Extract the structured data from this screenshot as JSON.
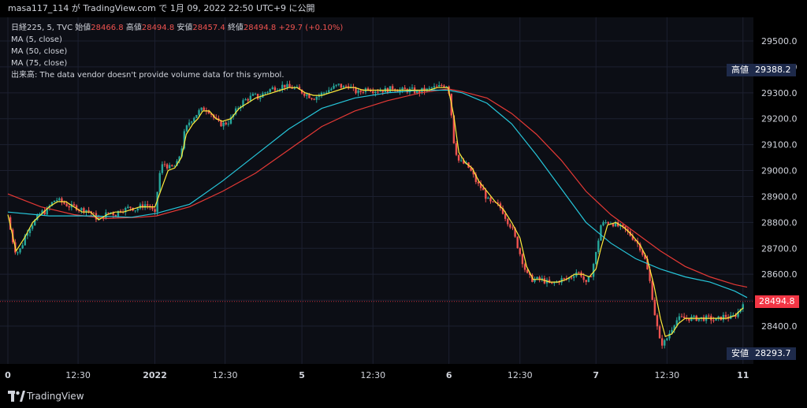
{
  "header": {
    "publisher": "masa117_114 が TradingView.com で 1月 09, 2022 22:50 UTC+9 に公開"
  },
  "legend": {
    "symbol": "日経225, 5, TVC",
    "open_label": "始値",
    "open_value": "28466.8",
    "high_label": "高値",
    "high_value": "28494.8",
    "low_label": "安値",
    "low_value": "28457.4",
    "close_label": "終値",
    "close_value": "28494.8",
    "change_value": "+29.7 (+0.10%)",
    "ma5": "MA (5, close)",
    "ma50": "MA (50, close)",
    "ma75": "MA (75, close)",
    "volume_note": "出来高: The data vendor doesn't provide volume data for this symbol."
  },
  "tags": {
    "high_label": "高値",
    "high_value": "29388.2",
    "low_label": "安値",
    "low_value": "28293.7",
    "last_value": "28494.8"
  },
  "footer": {
    "brand": "TradingView"
  },
  "colors": {
    "up": "#26a69a",
    "down": "#ef5350",
    "ma5": "#ffeb3b",
    "ma50": "#26c6da",
    "ma75": "#e53935",
    "last": "#f23645"
  },
  "chart_data": {
    "type": "candlestick",
    "title": "日経225, 5, TVC",
    "y_ticks": [
      28400,
      28500,
      28600,
      28700,
      28800,
      28900,
      29000,
      29100,
      29200,
      29300,
      29400,
      29500
    ],
    "y_tick_labels": [
      "28400.0",
      "28500.0",
      "28600.0",
      "28700.0",
      "28800.0",
      "28900.0",
      "29000.0",
      "29100.0",
      "29200.0",
      "29300.0",
      "29400.0",
      "29500.0"
    ],
    "ylim": [
      28250,
      29580
    ],
    "x_ticks": [
      "0",
      "12:30",
      "2022",
      "12:30",
      "5",
      "12:30",
      "6",
      "12:30",
      "7",
      "12:30",
      "11"
    ],
    "x_tick_pos": [
      0,
      8.5,
      17.8,
      26.3,
      35.6,
      44.2,
      53.4,
      62,
      71.2,
      79.8,
      89
    ],
    "x_range": [
      0,
      89.5
    ],
    "close_path": [
      [
        0,
        28820
      ],
      [
        0.5,
        28740
      ],
      [
        1,
        28680
      ],
      [
        1.6,
        28700
      ],
      [
        2.2,
        28760
      ],
      [
        2.8,
        28790
      ],
      [
        3.4,
        28810
      ],
      [
        4,
        28840
      ],
      [
        4.6,
        28840
      ],
      [
        5.2,
        28870
      ],
      [
        5.8,
        28890
      ],
      [
        6.4,
        28880
      ],
      [
        7,
        28870
      ],
      [
        7.6,
        28860
      ],
      [
        8.2,
        28860
      ],
      [
        8.8,
        28850
      ],
      [
        9.4,
        28850
      ],
      [
        10,
        28840
      ],
      [
        10.6,
        28820
      ],
      [
        11.2,
        28810
      ],
      [
        11.8,
        28830
      ],
      [
        12.4,
        28840
      ],
      [
        13,
        28830
      ],
      [
        13.6,
        28850
      ],
      [
        14.2,
        28850
      ],
      [
        14.8,
        28860
      ],
      [
        15.4,
        28850
      ],
      [
        16,
        28860
      ],
      [
        16.6,
        28870
      ],
      [
        17.2,
        28860
      ],
      [
        17.8,
        28830
      ],
      [
        18.3,
        28980
      ],
      [
        18.8,
        29030
      ],
      [
        19.6,
        29010
      ],
      [
        20.4,
        29020
      ],
      [
        21,
        29080
      ],
      [
        21.4,
        29150
      ],
      [
        22,
        29190
      ],
      [
        22.6,
        29210
      ],
      [
        23.2,
        29230
      ],
      [
        23.8,
        29240
      ],
      [
        24.4,
        29230
      ],
      [
        25,
        29200
      ],
      [
        25.6,
        29180
      ],
      [
        26.2,
        29180
      ],
      [
        26.8,
        29190
      ],
      [
        27.4,
        29220
      ],
      [
        28,
        29250
      ],
      [
        28.6,
        29270
      ],
      [
        29.2,
        29280
      ],
      [
        29.8,
        29290
      ],
      [
        30.4,
        29280
      ],
      [
        31,
        29300
      ],
      [
        31.6,
        29310
      ],
      [
        32.2,
        29320
      ],
      [
        32.8,
        29320
      ],
      [
        33.4,
        29330
      ],
      [
        34,
        29320
      ],
      [
        34.6,
        29320
      ],
      [
        35.2,
        29310
      ],
      [
        35.8,
        29300
      ],
      [
        36.4,
        29290
      ],
      [
        37,
        29280
      ],
      [
        37.6,
        29290
      ],
      [
        38.2,
        29300
      ],
      [
        38.8,
        29310
      ],
      [
        39.4,
        29320
      ],
      [
        40,
        29330
      ],
      [
        40.6,
        29320
      ],
      [
        41.2,
        29330
      ],
      [
        41.8,
        29310
      ],
      [
        42.4,
        29300
      ],
      [
        43,
        29310
      ],
      [
        43.6,
        29320
      ],
      [
        44.2,
        29310
      ],
      [
        44.8,
        29310
      ],
      [
        45.4,
        29310
      ],
      [
        46,
        29310
      ],
      [
        46.6,
        29320
      ],
      [
        47.2,
        29310
      ],
      [
        47.8,
        29310
      ],
      [
        48.4,
        29310
      ],
      [
        49,
        29310
      ],
      [
        49.6,
        29300
      ],
      [
        50.2,
        29310
      ],
      [
        50.8,
        29310
      ],
      [
        51.4,
        29320
      ],
      [
        52,
        29320
      ],
      [
        52.6,
        29330
      ],
      [
        53.3,
        29330
      ],
      [
        53.6,
        29250
      ],
      [
        54,
        29110
      ],
      [
        54.5,
        29040
      ],
      [
        55,
        29030
      ],
      [
        55.6,
        29020
      ],
      [
        56.2,
        28990
      ],
      [
        56.8,
        28950
      ],
      [
        57.4,
        28930
      ],
      [
        58,
        28890
      ],
      [
        58.6,
        28870
      ],
      [
        59.2,
        28870
      ],
      [
        59.8,
        28850
      ],
      [
        60.4,
        28810
      ],
      [
        61,
        28780
      ],
      [
        61.6,
        28720
      ],
      [
        62.2,
        28660
      ],
      [
        62.8,
        28600
      ],
      [
        63.4,
        28580
      ],
      [
        64,
        28580
      ],
      [
        64.6,
        28580
      ],
      [
        65.2,
        28570
      ],
      [
        65.8,
        28560
      ],
      [
        66.4,
        28570
      ],
      [
        67,
        28580
      ],
      [
        67.6,
        28580
      ],
      [
        68.2,
        28590
      ],
      [
        68.8,
        28610
      ],
      [
        69.4,
        28600
      ],
      [
        70,
        28560
      ],
      [
        70.6,
        28600
      ],
      [
        71.2,
        28680
      ],
      [
        71.8,
        28790
      ],
      [
        72.4,
        28800
      ],
      [
        73,
        28800
      ],
      [
        73.6,
        28790
      ],
      [
        74.2,
        28780
      ],
      [
        74.8,
        28770
      ],
      [
        75.4,
        28750
      ],
      [
        76,
        28730
      ],
      [
        76.6,
        28700
      ],
      [
        77.2,
        28650
      ],
      [
        77.8,
        28560
      ],
      [
        78.4,
        28430
      ],
      [
        79,
        28330
      ],
      [
        79.6,
        28340
      ],
      [
        80.2,
        28380
      ],
      [
        80.8,
        28420
      ],
      [
        81.4,
        28430
      ],
      [
        82,
        28430
      ],
      [
        82.6,
        28430
      ],
      [
        83.2,
        28430
      ],
      [
        83.8,
        28430
      ],
      [
        84.4,
        28430
      ],
      [
        85,
        28430
      ],
      [
        85.6,
        28420
      ],
      [
        86.2,
        28430
      ],
      [
        86.8,
        28440
      ],
      [
        87.4,
        28430
      ],
      [
        88,
        28440
      ],
      [
        88.6,
        28460
      ],
      [
        89,
        28495
      ]
    ],
    "ma5_path": [
      [
        0,
        28830
      ],
      [
        1,
        28690
      ],
      [
        2,
        28740
      ],
      [
        3,
        28800
      ],
      [
        4,
        28830
      ],
      [
        5,
        28860
      ],
      [
        6,
        28880
      ],
      [
        7,
        28880
      ],
      [
        8,
        28860
      ],
      [
        9,
        28840
      ],
      [
        10,
        28840
      ],
      [
        11,
        28810
      ],
      [
        12,
        28830
      ],
      [
        13,
        28840
      ],
      [
        14,
        28840
      ],
      [
        15,
        28850
      ],
      [
        16,
        28860
      ],
      [
        17,
        28860
      ],
      [
        17.8,
        28860
      ],
      [
        18.6,
        28930
      ],
      [
        19.4,
        29000
      ],
      [
        20.2,
        29010
      ],
      [
        21,
        29050
      ],
      [
        21.6,
        29140
      ],
      [
        22.4,
        29180
      ],
      [
        23,
        29200
      ],
      [
        23.6,
        29230
      ],
      [
        24.4,
        29230
      ],
      [
        25.2,
        29200
      ],
      [
        26,
        29190
      ],
      [
        27,
        29200
      ],
      [
        28,
        29240
      ],
      [
        29,
        29260
      ],
      [
        30,
        29280
      ],
      [
        31,
        29290
      ],
      [
        32,
        29300
      ],
      [
        33,
        29310
      ],
      [
        34,
        29320
      ],
      [
        35,
        29320
      ],
      [
        36,
        29300
      ],
      [
        37,
        29290
      ],
      [
        38,
        29290
      ],
      [
        39,
        29300
      ],
      [
        40,
        29310
      ],
      [
        41,
        29320
      ],
      [
        42,
        29320
      ],
      [
        43,
        29310
      ],
      [
        44,
        29310
      ],
      [
        45,
        29310
      ],
      [
        46,
        29310
      ],
      [
        47,
        29310
      ],
      [
        48,
        29310
      ],
      [
        49,
        29310
      ],
      [
        50,
        29310
      ],
      [
        51,
        29310
      ],
      [
        52,
        29320
      ],
      [
        53.3,
        29320
      ],
      [
        54,
        29210
      ],
      [
        54.6,
        29070
      ],
      [
        55.4,
        29030
      ],
      [
        56.2,
        29010
      ],
      [
        57,
        28960
      ],
      [
        58,
        28920
      ],
      [
        59,
        28880
      ],
      [
        60,
        28850
      ],
      [
        61,
        28800
      ],
      [
        62,
        28740
      ],
      [
        62.8,
        28630
      ],
      [
        63.6,
        28580
      ],
      [
        64.6,
        28580
      ],
      [
        65.6,
        28570
      ],
      [
        66.6,
        28570
      ],
      [
        67.6,
        28580
      ],
      [
        68.6,
        28600
      ],
      [
        69.6,
        28600
      ],
      [
        70.4,
        28590
      ],
      [
        71.2,
        28620
      ],
      [
        71.8,
        28700
      ],
      [
        72.6,
        28790
      ],
      [
        73.6,
        28800
      ],
      [
        74.6,
        28780
      ],
      [
        75.6,
        28750
      ],
      [
        76.6,
        28710
      ],
      [
        77.4,
        28660
      ],
      [
        78.2,
        28560
      ],
      [
        79,
        28430
      ],
      [
        79.6,
        28360
      ],
      [
        80.4,
        28370
      ],
      [
        81.2,
        28410
      ],
      [
        82,
        28430
      ],
      [
        83,
        28430
      ],
      [
        84,
        28430
      ],
      [
        85,
        28430
      ],
      [
        86,
        28430
      ],
      [
        87,
        28430
      ],
      [
        88,
        28440
      ],
      [
        89,
        28470
      ]
    ],
    "ma50_path": [
      [
        0,
        28840
      ],
      [
        5,
        28825
      ],
      [
        10,
        28825
      ],
      [
        15,
        28820
      ],
      [
        18,
        28835
      ],
      [
        22,
        28870
      ],
      [
        26,
        28960
      ],
      [
        30,
        29060
      ],
      [
        34,
        29160
      ],
      [
        38,
        29240
      ],
      [
        42,
        29280
      ],
      [
        46,
        29300
      ],
      [
        50,
        29310
      ],
      [
        53.3,
        29310
      ],
      [
        55,
        29300
      ],
      [
        58,
        29260
      ],
      [
        61,
        29180
      ],
      [
        64,
        29060
      ],
      [
        67,
        28930
      ],
      [
        70,
        28800
      ],
      [
        73,
        28720
      ],
      [
        76,
        28660
      ],
      [
        79,
        28620
      ],
      [
        82,
        28590
      ],
      [
        85,
        28570
      ],
      [
        88,
        28535
      ],
      [
        89.5,
        28510
      ]
    ],
    "ma75_path": [
      [
        0,
        28910
      ],
      [
        4,
        28860
      ],
      [
        8,
        28830
      ],
      [
        12,
        28815
      ],
      [
        16,
        28820
      ],
      [
        18,
        28825
      ],
      [
        22,
        28860
      ],
      [
        26,
        28920
      ],
      [
        30,
        28990
      ],
      [
        34,
        29080
      ],
      [
        38,
        29170
      ],
      [
        42,
        29230
      ],
      [
        46,
        29270
      ],
      [
        50,
        29300
      ],
      [
        53.3,
        29315
      ],
      [
        55,
        29305
      ],
      [
        58,
        29280
      ],
      [
        61,
        29220
      ],
      [
        64,
        29140
      ],
      [
        67,
        29040
      ],
      [
        70,
        28920
      ],
      [
        73,
        28830
      ],
      [
        76,
        28760
      ],
      [
        79,
        28690
      ],
      [
        82,
        28630
      ],
      [
        85,
        28590
      ],
      [
        88,
        28560
      ],
      [
        89.5,
        28550
      ]
    ]
  }
}
